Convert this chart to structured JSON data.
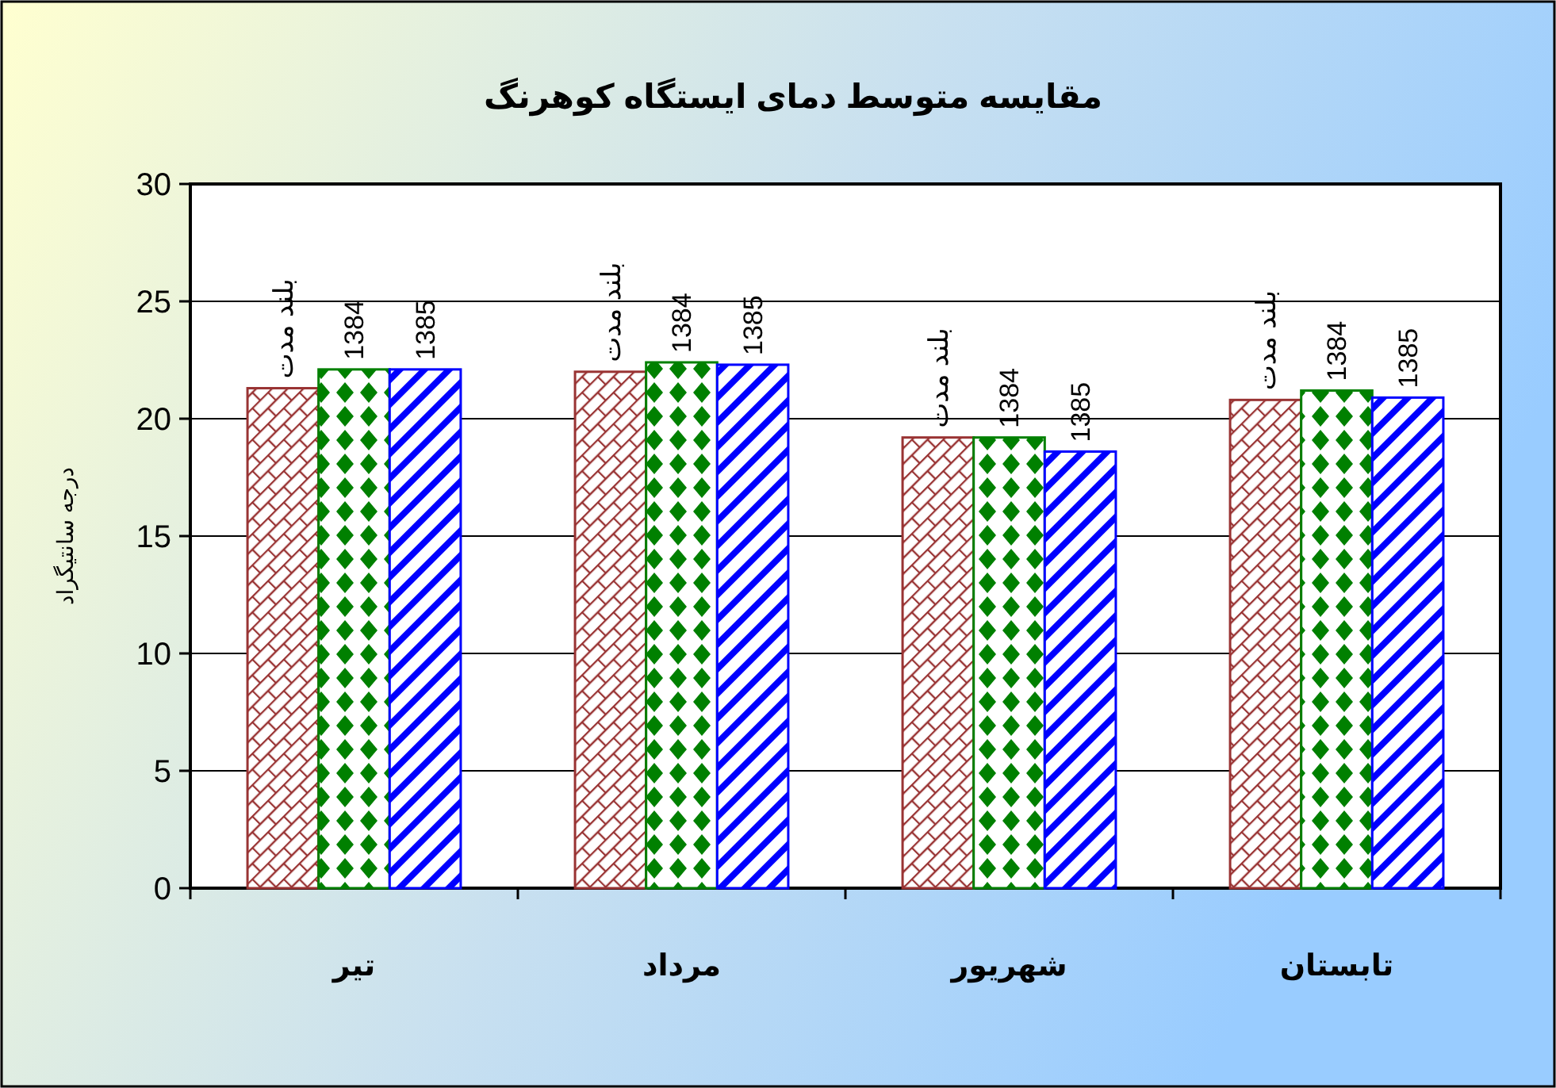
{
  "chart_data": {
    "type": "bar",
    "title": "مقایسه متوسط دمای ایستگاه کوهرنگ",
    "ylabel": "درجه سانتیگراد",
    "categories": [
      "تیر",
      "مرداد",
      "شهریور",
      "تابستان"
    ],
    "series": [
      {
        "name": "بلند مدت",
        "color": "#993333",
        "values": [
          21.3,
          22.0,
          19.2,
          20.8
        ]
      },
      {
        "name": "1384",
        "color": "#008000",
        "values": [
          22.1,
          22.4,
          19.2,
          21.2
        ]
      },
      {
        "name": "1385",
        "color": "#0000ff",
        "values": [
          22.1,
          22.3,
          18.6,
          20.9
        ]
      }
    ],
    "ylim": [
      0,
      30
    ],
    "yticks": [
      0,
      5,
      10,
      15,
      20,
      25,
      30
    ],
    "grid": "y"
  }
}
